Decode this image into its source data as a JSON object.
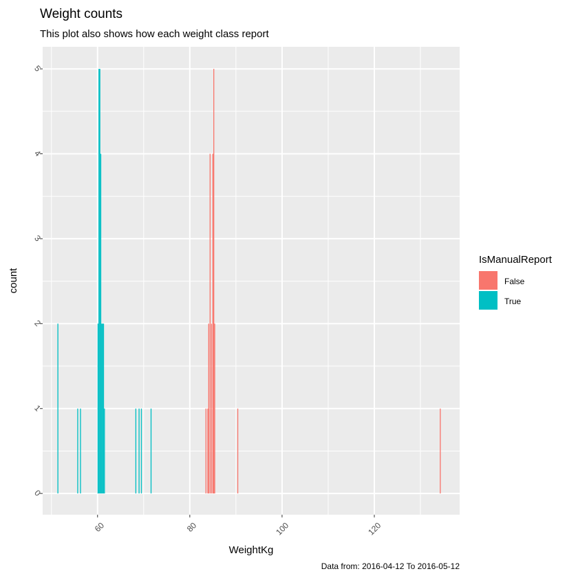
{
  "chart_data": {
    "type": "bar",
    "title": "Weight counts",
    "subtitle": "This plot also shows how each weight class report",
    "caption": "Data from: 2016-04-12 To 2016-05-12",
    "xlabel": "WeightKg",
    "ylabel": "count",
    "xlim": [
      48.1,
      138.5
    ],
    "ylim": [
      -0.25,
      5.26
    ],
    "xticks": [
      60,
      80,
      100,
      120
    ],
    "yticks": [
      0,
      1,
      2,
      3,
      4,
      5
    ],
    "xtick_labels": [
      "60",
      "80",
      "100",
      "120"
    ],
    "ytick_labels": [
      "0",
      "1",
      "2",
      "3",
      "4",
      "5"
    ],
    "binwidth": 0.2,
    "grid": true,
    "legend": {
      "title": "IsManualReport",
      "position": "right",
      "entries": [
        {
          "label": "False",
          "color": "#F8766D"
        },
        {
          "label": "True",
          "color": "#00BFC4"
        }
      ]
    },
    "series": [
      {
        "name": "False",
        "color": "#F8766D",
        "bars": [
          {
            "x": 83.5,
            "count": 1
          },
          {
            "x": 83.9,
            "count": 1
          },
          {
            "x": 84.1,
            "count": 2
          },
          {
            "x": 84.4,
            "count": 4
          },
          {
            "x": 84.7,
            "count": 2
          },
          {
            "x": 85.0,
            "count": 4
          },
          {
            "x": 85.2,
            "count": 5
          },
          {
            "x": 85.4,
            "count": 2
          },
          {
            "x": 90.4,
            "count": 1
          },
          {
            "x": 134.3,
            "count": 1
          }
        ]
      },
      {
        "name": "True",
        "color": "#00BFC4",
        "bars": [
          {
            "x": 51.4,
            "count": 2
          },
          {
            "x": 55.7,
            "count": 1
          },
          {
            "x": 56.3,
            "count": 1
          },
          {
            "x": 60.1,
            "count": 2
          },
          {
            "x": 60.3,
            "count": 5
          },
          {
            "x": 60.5,
            "count": 5
          },
          {
            "x": 60.7,
            "count": 4
          },
          {
            "x": 60.9,
            "count": 2
          },
          {
            "x": 61.1,
            "count": 2
          },
          {
            "x": 61.3,
            "count": 2
          },
          {
            "x": 61.5,
            "count": 1
          },
          {
            "x": 68.3,
            "count": 1
          },
          {
            "x": 69.0,
            "count": 1
          },
          {
            "x": 69.5,
            "count": 1
          },
          {
            "x": 71.6,
            "count": 1
          }
        ]
      }
    ]
  }
}
